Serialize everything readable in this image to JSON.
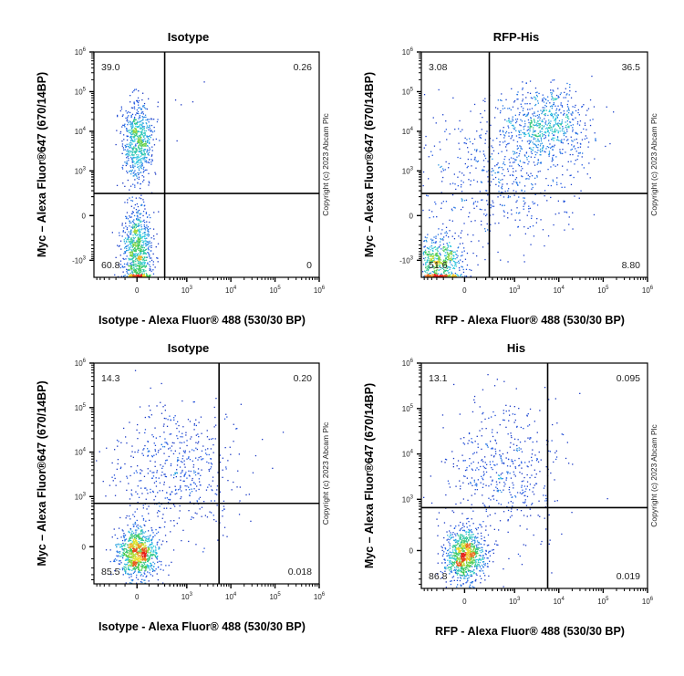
{
  "chart_data": [
    {
      "type": "scatter",
      "title": "Isotype",
      "xlabel": "Isotype - Alexa Fluor® 488 (530/30 BP)",
      "ylabel": "Myc – Alexa Fluor®647 (670/14BP)",
      "x_scale": "biexponential",
      "y_scale": "biexponential",
      "xlim": [
        -700,
        1000000
      ],
      "ylim": [
        -2700,
        1000000
      ],
      "x_ticks": [
        {
          "base": "0",
          "exp": ""
        },
        {
          "base": "10",
          "exp": "3"
        },
        {
          "base": "10",
          "exp": "4"
        },
        {
          "base": "10",
          "exp": "5"
        },
        {
          "base": "10",
          "exp": "6"
        }
      ],
      "x_tick_values": [
        0,
        1000,
        10000,
        100000,
        1000000
      ],
      "y_ticks": [
        {
          "base": "-10",
          "exp": "3"
        },
        {
          "base": "0",
          "exp": ""
        },
        {
          "base": "10",
          "exp": "3"
        },
        {
          "base": "10",
          "exp": "4"
        },
        {
          "base": "10",
          "exp": "5"
        },
        {
          "base": "10",
          "exp": "6"
        }
      ],
      "y_tick_values": [
        -1000,
        0,
        1000,
        10000,
        100000,
        1000000
      ],
      "gate": {
        "x": 300,
        "y": 250
      },
      "quadrants": {
        "upper_left": "39.0",
        "upper_right": "0.26",
        "lower_left": "60.8",
        "lower_right": "0"
      },
      "populations": [
        {
          "x": 0,
          "y": -600,
          "count": 850,
          "sd_x": 0.13,
          "sd_y": 0.45
        },
        {
          "x": 0,
          "y": 6000,
          "count": 650,
          "sd_x": 0.13,
          "sd_y": 0.4
        },
        {
          "x": 600,
          "y": 20000,
          "count": 8,
          "sd_x": 0.3,
          "sd_y": 0.3
        }
      ],
      "copyright": "Copyright (c) 2023 Abcam Plc"
    },
    {
      "type": "scatter",
      "title": "RFP-His",
      "xlabel": "RFP - Alexa Fluor® 488 (530/30 BP)",
      "ylabel": "Myc – Alexa Fluor®647 (670/14BP)",
      "x_scale": "biexponential",
      "y_scale": "biexponential",
      "xlim": [
        -700,
        1000000
      ],
      "ylim": [
        -2700,
        1000000
      ],
      "x_ticks": [
        {
          "base": "0",
          "exp": ""
        },
        {
          "base": "10",
          "exp": "3"
        },
        {
          "base": "10",
          "exp": "4"
        },
        {
          "base": "10",
          "exp": "5"
        },
        {
          "base": "10",
          "exp": "6"
        }
      ],
      "x_tick_values": [
        0,
        1000,
        10000,
        100000,
        1000000
      ],
      "y_ticks": [
        {
          "base": "-10",
          "exp": "3"
        },
        {
          "base": "0",
          "exp": ""
        },
        {
          "base": "10",
          "exp": "3"
        },
        {
          "base": "10",
          "exp": "4"
        },
        {
          "base": "10",
          "exp": "5"
        },
        {
          "base": "10",
          "exp": "6"
        }
      ],
      "y_tick_values": [
        -1000,
        0,
        1000,
        10000,
        100000,
        1000000
      ],
      "gate": {
        "x": 250,
        "y": 250
      },
      "quadrants": {
        "upper_left": "3.08",
        "upper_right": "36.5",
        "lower_left": "51.6",
        "lower_right": "8.80"
      },
      "populations": [
        {
          "x": -300,
          "y": -1200,
          "count": 650,
          "sd_x": 0.22,
          "sd_y": 0.28
        },
        {
          "x": 5000,
          "y": 15000,
          "count": 650,
          "sd_x": 0.35,
          "sd_y": 0.35
        },
        {
          "x": 400,
          "y": 800,
          "count": 550,
          "sd_x": 0.65,
          "sd_y": 0.65
        }
      ],
      "copyright": "Copyright (c) 2023 Abcam Plc"
    },
    {
      "type": "scatter",
      "title": "Isotype",
      "xlabel": "Isotype - Alexa Fluor® 488 (530/30 BP)",
      "ylabel": "Myc – Alexa Fluor®647 (670/14BP)",
      "x_scale": "biexponential",
      "y_scale": "biexponential",
      "xlim": [
        -700,
        1000000
      ],
      "ylim": [
        -500,
        1000000
      ],
      "x_ticks": [
        {
          "base": "0",
          "exp": ""
        },
        {
          "base": "10",
          "exp": "3"
        },
        {
          "base": "10",
          "exp": "4"
        },
        {
          "base": "10",
          "exp": "5"
        },
        {
          "base": "10",
          "exp": "6"
        }
      ],
      "x_tick_values": [
        0,
        1000,
        10000,
        100000,
        1000000
      ],
      "y_ticks": [
        {
          "base": "0",
          "exp": ""
        },
        {
          "base": "10",
          "exp": "3"
        },
        {
          "base": "10",
          "exp": "4"
        },
        {
          "base": "10",
          "exp": "5"
        },
        {
          "base": "10",
          "exp": "6"
        }
      ],
      "y_tick_values": [
        0,
        1000,
        10000,
        100000,
        1000000
      ],
      "gate": {
        "x": 5400,
        "y": 700
      },
      "quadrants": {
        "upper_left": "14.3",
        "upper_right": "0.20",
        "lower_left": "85.5",
        "lower_right": "0.018"
      },
      "populations": [
        {
          "x": 0,
          "y": -50,
          "count": 950,
          "sd_x": 0.18,
          "sd_y": 0.22
        },
        {
          "x": 500,
          "y": 4000,
          "count": 550,
          "sd_x": 0.55,
          "sd_y": 0.6
        }
      ],
      "copyright": "Copyright (c) 2023 Abcam Plc"
    },
    {
      "type": "scatter",
      "title": "His",
      "xlabel": "RFP - Alexa Fluor® 488 (530/30 BP)",
      "ylabel": "Myc – Alexa Fluor®647 (670/14BP)",
      "x_scale": "biexponential",
      "y_scale": "biexponential",
      "xlim": [
        -700,
        1000000
      ],
      "ylim": [
        -500,
        1000000
      ],
      "x_ticks": [
        {
          "base": "0",
          "exp": ""
        },
        {
          "base": "10",
          "exp": "3"
        },
        {
          "base": "10",
          "exp": "4"
        },
        {
          "base": "10",
          "exp": "5"
        },
        {
          "base": "10",
          "exp": "6"
        }
      ],
      "x_tick_values": [
        0,
        1000,
        10000,
        100000,
        1000000
      ],
      "y_ticks": [
        {
          "base": "0",
          "exp": ""
        },
        {
          "base": "10",
          "exp": "3"
        },
        {
          "base": "10",
          "exp": "4"
        },
        {
          "base": "10",
          "exp": "5"
        },
        {
          "base": "10",
          "exp": "6"
        }
      ],
      "y_tick_values": [
        0,
        1000,
        10000,
        100000,
        1000000
      ],
      "gate": {
        "x": 5600,
        "y": 650
      },
      "quadrants": {
        "upper_left": "13.1",
        "upper_right": "0.095",
        "lower_left": "86.8",
        "lower_right": "0.019"
      },
      "populations": [
        {
          "x": 0,
          "y": -30,
          "count": 950,
          "sd_x": 0.18,
          "sd_y": 0.22
        },
        {
          "x": 500,
          "y": 4000,
          "count": 500,
          "sd_x": 0.55,
          "sd_y": 0.6
        }
      ],
      "copyright": "Copyright (c) 2023 Abcam Plc"
    }
  ],
  "colors": {
    "axis": "#000000",
    "density_low": "#1a1aa6",
    "density_mid": "#22c95a",
    "density_high": "#e8231c"
  }
}
